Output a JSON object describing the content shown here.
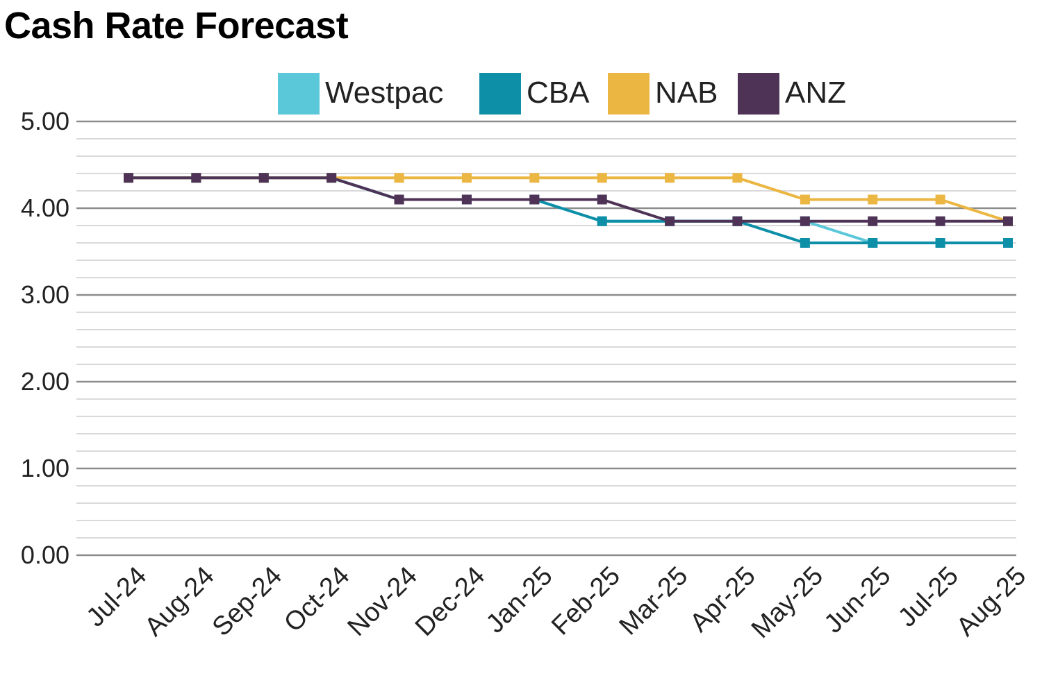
{
  "chart_data": {
    "type": "line",
    "title": "Cash Rate Forecast",
    "xlabel": "",
    "ylabel": "",
    "ylim": [
      0,
      5
    ],
    "yticks": [
      "0.00",
      "1.00",
      "2.00",
      "3.00",
      "4.00",
      "5.00"
    ],
    "y_minor_step": 0.2,
    "legend_position": "top",
    "categories": [
      "Jul-24",
      "Aug-24",
      "Sep-24",
      "Oct-24",
      "Nov-24",
      "Dec-24",
      "Jan-25",
      "Feb-25",
      "Mar-25",
      "Apr-25",
      "May-25",
      "Jun-25",
      "Jul-25",
      "Aug-25"
    ],
    "series": [
      {
        "name": "Westpac",
        "color": "#5bc8da",
        "values": [
          4.35,
          4.35,
          4.35,
          4.35,
          4.1,
          4.1,
          4.1,
          3.85,
          3.85,
          3.85,
          3.85,
          3.6,
          3.6,
          3.6
        ]
      },
      {
        "name": "CBA",
        "color": "#0d8fa8",
        "values": [
          4.35,
          4.35,
          4.35,
          4.35,
          4.1,
          4.1,
          4.1,
          3.85,
          3.85,
          3.85,
          3.6,
          3.6,
          3.6,
          3.6
        ]
      },
      {
        "name": "NAB",
        "color": "#ebb642",
        "values": [
          4.35,
          4.35,
          4.35,
          4.35,
          4.35,
          4.35,
          4.35,
          4.35,
          4.35,
          4.35,
          4.1,
          4.1,
          4.1,
          3.85
        ]
      },
      {
        "name": "ANZ",
        "color": "#4e3357",
        "values": [
          4.35,
          4.35,
          4.35,
          4.35,
          4.1,
          4.1,
          4.1,
          4.1,
          3.85,
          3.85,
          3.85,
          3.85,
          3.85,
          3.85
        ]
      }
    ]
  }
}
